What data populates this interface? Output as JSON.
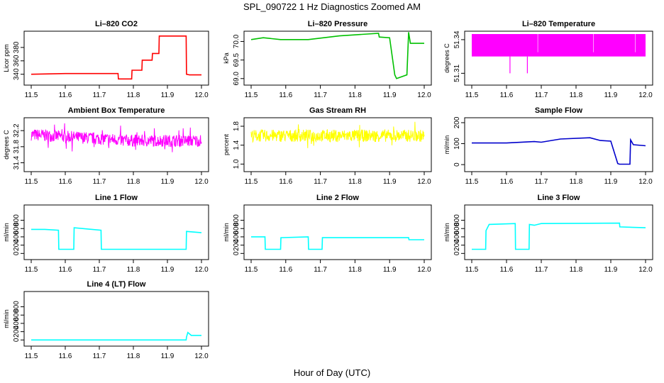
{
  "title": "SPL_090722  1 Hz Diagnostics Zoomed AM",
  "xlabel": "Hour of Day (UTC)",
  "chart_data": [
    {
      "type": "line",
      "title": "Li–820 CO2",
      "ylabel": "Licor ppm",
      "color": "#ff0000",
      "xlim": [
        11.5,
        12.0
      ],
      "ylim": [
        328,
        400
      ],
      "xticks": [
        11.5,
        11.6,
        11.7,
        11.8,
        11.9,
        12.0
      ],
      "yticks": [
        340,
        360,
        380
      ],
      "x": [
        11.5,
        11.6,
        11.755,
        11.756,
        11.795,
        11.796,
        11.825,
        11.826,
        11.855,
        11.856,
        11.875,
        11.876,
        11.955,
        11.956,
        11.965,
        12.0
      ],
      "values": [
        340,
        341,
        341,
        333,
        333,
        346,
        346,
        361,
        361,
        371,
        371,
        397,
        397,
        340,
        339,
        339
      ]
    },
    {
      "type": "line",
      "title": "Li–820 Pressure",
      "ylabel": "kPa",
      "color": "#00c000",
      "xlim": [
        11.5,
        12.0
      ],
      "ylim": [
        68.9,
        70.2
      ],
      "xticks": [
        11.5,
        11.6,
        11.7,
        11.8,
        11.9,
        12.0
      ],
      "yticks": [
        69.0,
        69.5,
        70.0
      ],
      "x": [
        11.5,
        11.535,
        11.585,
        11.665,
        11.755,
        11.835,
        11.868,
        11.87,
        11.9,
        11.915,
        11.92,
        11.95,
        11.955,
        11.96,
        12.0
      ],
      "values": [
        70.05,
        70.1,
        70.05,
        70.05,
        70.15,
        70.2,
        70.22,
        70.12,
        70.1,
        69.1,
        69.0,
        69.1,
        70.25,
        69.95,
        69.95
      ]
    },
    {
      "type": "line",
      "title": "Li–820 Temperature",
      "ylabel": "degrees C",
      "color": "#ff00ff",
      "xlim": [
        11.5,
        12.0
      ],
      "ylim": [
        51.302,
        51.345
      ],
      "xticks": [
        11.5,
        11.6,
        11.7,
        11.8,
        11.9,
        12.0
      ],
      "yticks": [
        51.31,
        51.34
      ],
      "x": [
        11.5,
        12.0
      ],
      "values": [
        51.325,
        51.325
      ],
      "band": [
        51.325,
        51.345
      ],
      "spikes": [
        [
          11.61,
          51.31
        ],
        [
          11.66,
          51.31
        ]
      ]
    },
    {
      "type": "line",
      "title": "Ambient Box Temperature",
      "ylabel": "degrees C",
      "color": "#ff00ff",
      "xlim": [
        11.5,
        12.0
      ],
      "ylim": [
        31.25,
        32.45
      ],
      "xticks": [
        11.5,
        11.6,
        11.7,
        11.8,
        11.9,
        12.0
      ],
      "yticks": [
        31.4,
        31.8,
        32.2
      ],
      "x": [
        11.5,
        11.7,
        11.8,
        12.0
      ],
      "values": [
        32.1,
        32.0,
        31.95,
        31.95
      ],
      "noise": 0.15
    },
    {
      "type": "line",
      "title": "Gas Stream RH",
      "ylabel": "percent",
      "color": "#ffff00",
      "xlim": [
        11.5,
        12.0
      ],
      "ylim": [
        0.9,
        1.92
      ],
      "xticks": [
        11.5,
        11.6,
        11.7,
        11.8,
        11.9,
        12.0
      ],
      "yticks": [
        1.0,
        1.4,
        1.8
      ],
      "x": [
        11.5,
        12.0
      ],
      "values": [
        1.6,
        1.6
      ],
      "noise": 0.13
    },
    {
      "type": "line",
      "title": "Sample Flow",
      "ylabel": "ml/min",
      "color": "#0000cc",
      "xlim": [
        11.5,
        12.0
      ],
      "ylim": [
        -20,
        210
      ],
      "xticks": [
        11.5,
        11.6,
        11.7,
        11.8,
        11.9,
        12.0
      ],
      "yticks": [
        0,
        100,
        200
      ],
      "x": [
        11.5,
        11.585,
        11.6,
        11.68,
        11.7,
        11.755,
        11.84,
        11.87,
        11.9,
        11.92,
        11.925,
        11.955,
        11.957,
        11.965,
        12.0
      ],
      "values": [
        103,
        103,
        103,
        110,
        107,
        122,
        128,
        115,
        112,
        5,
        2,
        2,
        118,
        95,
        90
      ]
    },
    {
      "type": "line",
      "title": "Line 1 Flow",
      "ylabel": "ml/min",
      "color": "#00ffff",
      "xlim": [
        11.5,
        12.0
      ],
      "ylim": [
        -80,
        1100
      ],
      "xticks": [
        11.5,
        11.6,
        11.7,
        11.8,
        11.9,
        12.0
      ],
      "yticks": [
        0,
        200,
        400,
        600,
        800
      ],
      "x": [
        11.5,
        11.54,
        11.58,
        11.581,
        11.625,
        11.626,
        11.705,
        11.706,
        11.955,
        11.956,
        12.0
      ],
      "values": [
        580,
        580,
        560,
        100,
        100,
        620,
        560,
        100,
        100,
        530,
        500
      ]
    },
    {
      "type": "line",
      "title": "Line 2 Flow",
      "ylabel": "ml/min",
      "color": "#00ffff",
      "xlim": [
        11.5,
        12.0
      ],
      "ylim": [
        -80,
        1100
      ],
      "xticks": [
        11.5,
        11.6,
        11.7,
        11.8,
        11.9,
        12.0
      ],
      "yticks": [
        0,
        200,
        400,
        600,
        800
      ],
      "x": [
        11.5,
        11.54,
        11.541,
        11.585,
        11.586,
        11.665,
        11.666,
        11.705,
        11.706,
        11.955,
        11.956,
        12.0
      ],
      "values": [
        400,
        400,
        100,
        100,
        380,
        400,
        100,
        100,
        380,
        380,
        330,
        330
      ]
    },
    {
      "type": "line",
      "title": "Line 3 Flow",
      "ylabel": "ml/min",
      "color": "#00ffff",
      "xlim": [
        11.5,
        12.0
      ],
      "ylim": [
        -80,
        1100
      ],
      "xticks": [
        11.5,
        11.6,
        11.7,
        11.8,
        11.9,
        12.0
      ],
      "yticks": [
        0,
        200,
        400,
        600,
        800
      ],
      "x": [
        11.5,
        11.54,
        11.541,
        11.55,
        11.625,
        11.626,
        11.665,
        11.666,
        11.68,
        11.7,
        11.925,
        11.926,
        12.0
      ],
      "values": [
        100,
        100,
        550,
        700,
        720,
        100,
        100,
        700,
        680,
        720,
        730,
        640,
        620
      ]
    },
    {
      "type": "line",
      "title": "Line 4 (LT) Flow",
      "ylabel": "ml/min",
      "color": "#00ffff",
      "xlim": [
        11.5,
        12.0
      ],
      "ylim": [
        -80,
        1100
      ],
      "xticks": [
        11.5,
        11.6,
        11.7,
        11.8,
        11.9,
        12.0
      ],
      "yticks": [
        0,
        200,
        400,
        600,
        800
      ],
      "x": [
        11.5,
        11.955,
        11.956,
        11.96,
        11.97,
        12.0
      ],
      "values": [
        0,
        0,
        70,
        180,
        110,
        110
      ]
    }
  ]
}
